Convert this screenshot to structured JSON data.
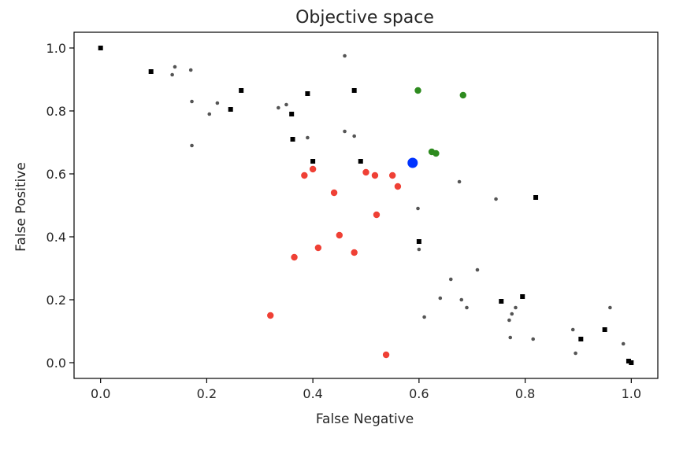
{
  "chart_data": {
    "type": "scatter",
    "title": "Objective space",
    "xlabel": "False Negative",
    "ylabel": "False Positive",
    "xlim": [
      -0.05,
      1.05
    ],
    "ylim": [
      -0.05,
      1.05
    ],
    "x_ticks": [
      0.0,
      0.2,
      0.4,
      0.6,
      0.8,
      1.0
    ],
    "y_ticks": [
      0.0,
      0.2,
      0.4,
      0.6,
      0.8,
      1.0
    ],
    "x_tick_labels": [
      "0.0",
      "0.2",
      "0.4",
      "0.6",
      "0.8",
      "1.0"
    ],
    "y_tick_labels": [
      "0.0",
      "0.2",
      "0.4",
      "0.6",
      "0.8",
      "1.0"
    ],
    "grid": false,
    "series": [
      {
        "color": "#000000",
        "marker": "square",
        "points": [
          [
            0.0,
            1.0
          ],
          [
            0.095,
            0.925
          ],
          [
            0.245,
            0.805
          ],
          [
            0.265,
            0.865
          ],
          [
            0.36,
            0.79
          ],
          [
            0.362,
            0.71
          ],
          [
            0.39,
            0.855
          ],
          [
            0.4,
            0.64
          ],
          [
            0.478,
            0.865
          ],
          [
            0.49,
            0.64
          ],
          [
            0.6,
            0.385
          ],
          [
            0.755,
            0.195
          ],
          [
            0.795,
            0.21
          ],
          [
            0.82,
            0.525
          ],
          [
            0.905,
            0.075
          ],
          [
            0.95,
            0.105
          ],
          [
            0.995,
            0.005
          ],
          [
            1.0,
            0.0
          ]
        ]
      },
      {
        "color": "#555555",
        "marker": "dot-small",
        "points": [
          [
            0.135,
            0.915
          ],
          [
            0.14,
            0.94
          ],
          [
            0.17,
            0.93
          ],
          [
            0.172,
            0.83
          ],
          [
            0.172,
            0.69
          ],
          [
            0.205,
            0.79
          ],
          [
            0.22,
            0.825
          ],
          [
            0.335,
            0.81
          ],
          [
            0.35,
            0.82
          ],
          [
            0.39,
            0.715
          ],
          [
            0.46,
            0.975
          ],
          [
            0.46,
            0.735
          ],
          [
            0.478,
            0.72
          ],
          [
            0.598,
            0.49
          ],
          [
            0.6,
            0.36
          ],
          [
            0.61,
            0.145
          ],
          [
            0.64,
            0.205
          ],
          [
            0.66,
            0.265
          ],
          [
            0.676,
            0.575
          ],
          [
            0.68,
            0.2
          ],
          [
            0.69,
            0.175
          ],
          [
            0.71,
            0.295
          ],
          [
            0.745,
            0.52
          ],
          [
            0.77,
            0.135
          ],
          [
            0.775,
            0.155
          ],
          [
            0.782,
            0.175
          ],
          [
            0.772,
            0.08
          ],
          [
            0.815,
            0.075
          ],
          [
            0.89,
            0.105
          ],
          [
            0.895,
            0.03
          ],
          [
            0.96,
            0.175
          ],
          [
            0.985,
            0.06
          ]
        ]
      },
      {
        "color": "#ef4035",
        "marker": "dot",
        "points": [
          [
            0.32,
            0.15
          ],
          [
            0.365,
            0.335
          ],
          [
            0.384,
            0.595
          ],
          [
            0.4,
            0.615
          ],
          [
            0.41,
            0.365
          ],
          [
            0.44,
            0.54
          ],
          [
            0.45,
            0.405
          ],
          [
            0.478,
            0.35
          ],
          [
            0.5,
            0.605
          ],
          [
            0.517,
            0.595
          ],
          [
            0.52,
            0.47
          ],
          [
            0.538,
            0.025
          ],
          [
            0.55,
            0.595
          ],
          [
            0.56,
            0.56
          ]
        ]
      },
      {
        "color": "#2e8b1f",
        "marker": "dot",
        "points": [
          [
            0.598,
            0.865
          ],
          [
            0.624,
            0.67
          ],
          [
            0.632,
            0.665
          ],
          [
            0.683,
            0.85
          ]
        ]
      },
      {
        "color": "#0033ff",
        "marker": "dot-large",
        "points": [
          [
            0.588,
            0.635
          ]
        ]
      }
    ]
  }
}
